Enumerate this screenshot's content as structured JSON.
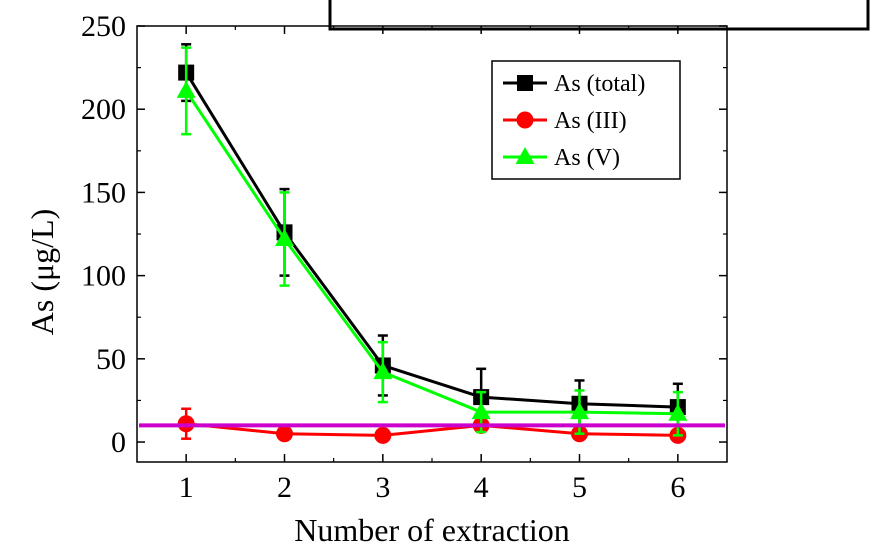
{
  "chart_data": {
    "type": "line",
    "xlabel": "Number of extraction",
    "ylabel": "As (μg/L)",
    "x": [
      1,
      2,
      3,
      4,
      5,
      6
    ],
    "xlim": [
      0.5,
      6.5
    ],
    "ylim": [
      -12,
      250
    ],
    "xticks": [
      "1",
      "2",
      "3",
      "4",
      "5",
      "6"
    ],
    "yticks": [
      "0",
      "50",
      "100",
      "150",
      "200",
      "250"
    ],
    "grid": false,
    "legend_position": "top-right",
    "reference_line": {
      "y": 10,
      "color": "#cc00cc"
    },
    "series": [
      {
        "name": "As (total)",
        "color": "#000000",
        "marker": "square",
        "values": [
          222,
          126,
          46,
          27,
          23,
          21
        ],
        "errors": [
          17,
          26,
          18,
          17,
          14,
          14
        ]
      },
      {
        "name": "As (III)",
        "color": "#ff0000",
        "marker": "circle",
        "values": [
          11,
          5,
          4,
          10,
          5,
          4
        ],
        "errors": [
          9,
          0,
          0,
          0,
          0,
          0
        ]
      },
      {
        "name": "As (V)",
        "color": "#00ff00",
        "marker": "triangle",
        "values": [
          211,
          122,
          42,
          18,
          18,
          17
        ],
        "errors": [
          26,
          28,
          18,
          12,
          13,
          13
        ]
      }
    ]
  }
}
